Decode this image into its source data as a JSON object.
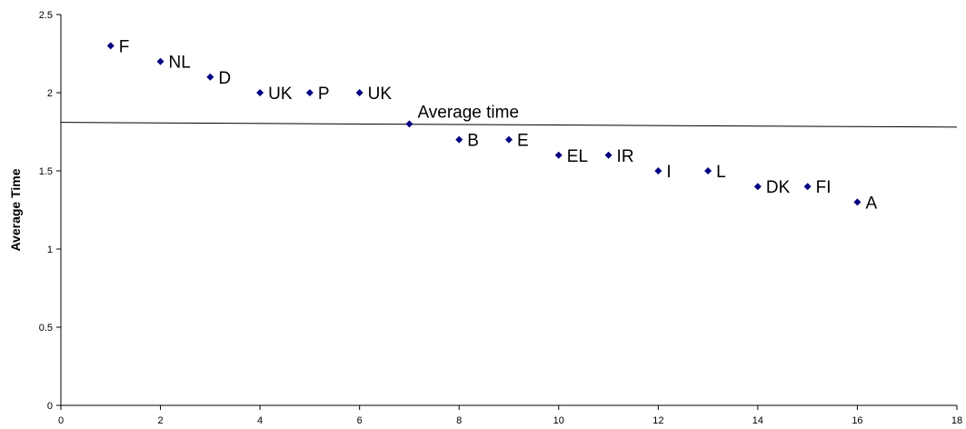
{
  "chart_data": {
    "type": "scatter",
    "ylabel": "Average Time",
    "xlim": [
      0,
      18
    ],
    "ylim": [
      0,
      2.5
    ],
    "x_ticks": [
      "0",
      "2",
      "4",
      "6",
      "8",
      "10",
      "12",
      "14",
      "16",
      "18"
    ],
    "y_ticks": [
      "0",
      "0.5",
      "1",
      "1.5",
      "2",
      "2.5"
    ],
    "grid": false,
    "marker_color": "#000080",
    "points": [
      {
        "x": 1,
        "y": 2.3,
        "label": "F"
      },
      {
        "x": 2,
        "y": 2.2,
        "label": "NL"
      },
      {
        "x": 3,
        "y": 2.1,
        "label": "D"
      },
      {
        "x": 4,
        "y": 2.0,
        "label": "UK"
      },
      {
        "x": 5,
        "y": 2.0,
        "label": "P"
      },
      {
        "x": 6,
        "y": 2.0,
        "label": "UK"
      },
      {
        "x": 7,
        "y": 1.8,
        "label": "Average time"
      },
      {
        "x": 8,
        "y": 1.7,
        "label": "B"
      },
      {
        "x": 9,
        "y": 1.7,
        "label": "E"
      },
      {
        "x": 10,
        "y": 1.6,
        "label": "EL"
      },
      {
        "x": 11,
        "y": 1.6,
        "label": "IR"
      },
      {
        "x": 12,
        "y": 1.5,
        "label": "I"
      },
      {
        "x": 13,
        "y": 1.5,
        "label": "L"
      },
      {
        "x": 14,
        "y": 1.4,
        "label": "DK"
      },
      {
        "x": 15,
        "y": 1.4,
        "label": "FI"
      },
      {
        "x": 16,
        "y": 1.3,
        "label": "A"
      }
    ],
    "trendline": {
      "x": [
        0,
        18
      ],
      "y": [
        1.81,
        1.78
      ]
    }
  }
}
